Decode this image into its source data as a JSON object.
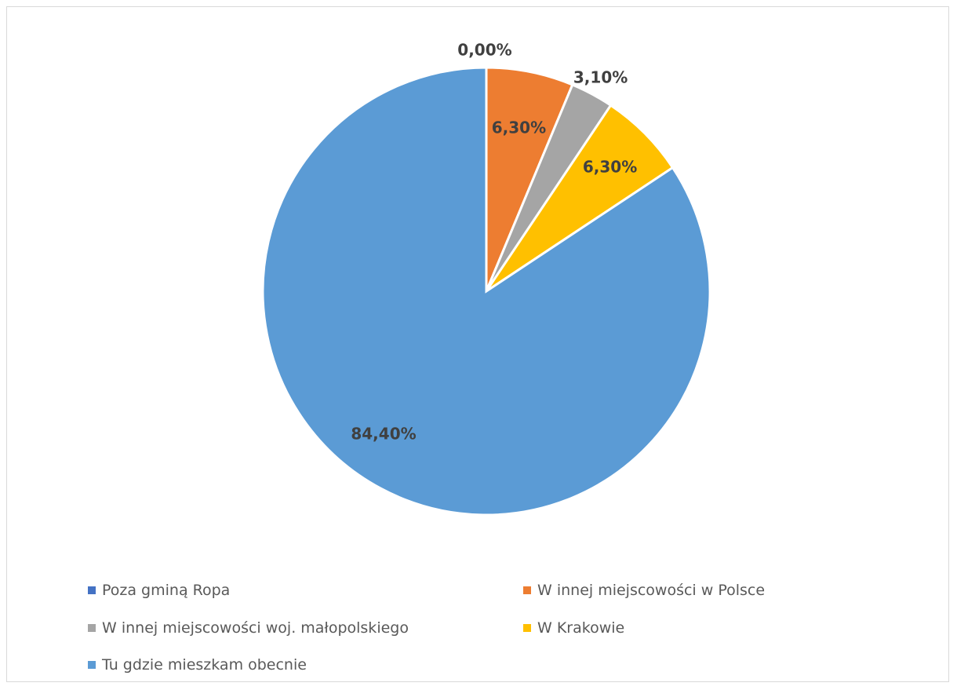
{
  "chart_data": {
    "type": "pie",
    "categories": [
      "Poza gminą Ropa",
      "W innej miejscowości w Polsce",
      "W innej miejscowości woj. małopolskiego",
      "W Krakowie",
      "Tu gdzie mieszkam obecnie"
    ],
    "values": [
      0.0,
      6.3,
      3.1,
      6.3,
      84.4
    ],
    "value_labels": [
      "0,00%",
      "6,30%",
      "3,10%",
      "6,30%",
      "84,40%"
    ],
    "colors": [
      "#4472C4",
      "#ED7D31",
      "#A5A5A5",
      "#FFC000",
      "#5B9BD5"
    ],
    "start_angle": "12 o'clock",
    "direction": "clockwise",
    "legend_position": "bottom",
    "title": ""
  },
  "legend": {
    "items": [
      {
        "label": "Poza gminą Ropa",
        "color": "#4472C4"
      },
      {
        "label": "W innej miejscowości w Polsce",
        "color": "#ED7D31"
      },
      {
        "label": "W innej miejscowości woj. małopolskiego",
        "color": "#A5A5A5"
      },
      {
        "label": "W Krakowie",
        "color": "#FFC000"
      },
      {
        "label": "Tu gdzie mieszkam obecnie",
        "color": "#5B9BD5"
      }
    ]
  }
}
